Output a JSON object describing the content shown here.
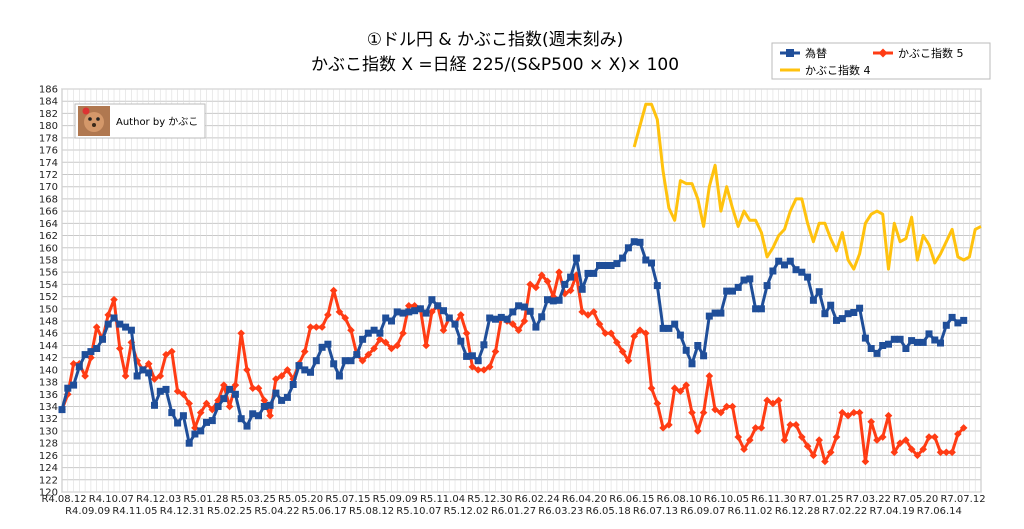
{
  "colors": {
    "fx": "#1f4e99",
    "k5": "#ff3c14",
    "k4": "#ffc20e",
    "grid": "#c8c8c8",
    "plot_bg": "#ffffff"
  },
  "chart_data": {
    "type": "line",
    "title_line1": "①ドル円 & かぶこ指数(週末刻み)",
    "title_line2": "かぶこ指数 X =日経 225/(S&P500 × X)× 100",
    "author_label": "Author by かぶこ",
    "author_icon": "dog-photo-icon",
    "ylim": [
      120,
      186
    ],
    "ytick_step": 2,
    "grid": true,
    "legend_position": "top-right",
    "x_tick_labels_upper": [
      "R4.08.12",
      "R4.10.07",
      "R4.12.03",
      "R5.01.28",
      "R5.03.25",
      "R5.05.20",
      "R5.07.15",
      "R5.09.09",
      "R5.11.04",
      "R5.12.30",
      "R6.02.24",
      "R6.04.20",
      "R6.06.15",
      "R6.08.10",
      "R6.10.05",
      "R6.11.30",
      "R7.01.25",
      "R7.03.22",
      "R7.05.20",
      "R7.07.12"
    ],
    "x_tick_labels_lower": [
      "R4.09.09",
      "R4.11.05",
      "R4.12.31",
      "R5.02.25",
      "R5.04.22",
      "R5.06.17",
      "R5.08.12",
      "R5.10.07",
      "R5.12.02",
      "R6.01.27",
      "R6.03.23",
      "R6.05.18",
      "R6.07.13",
      "R6.09.07",
      "R6.11.02",
      "R6.12.28",
      "R7.02.22",
      "R7.04.19",
      "R7.06.14"
    ],
    "series": [
      {
        "name": "為替",
        "color_key": "fx",
        "marker": "square",
        "start_index": 0,
        "values": [
          133.5,
          137,
          137.5,
          140.5,
          142.5,
          143,
          143.5,
          145,
          147.5,
          148.5,
          147.5,
          147,
          146.5,
          139,
          140,
          139.5,
          134.2,
          136.5,
          136.8,
          133,
          131.3,
          132.5,
          128,
          129.5,
          130,
          131.4,
          131.7,
          134,
          135.3,
          136.8,
          136,
          132,
          130.8,
          132.8,
          132.5,
          134,
          134.2,
          136.2,
          135,
          135.5,
          137.6,
          140.7,
          140,
          139.6,
          141.5,
          143.7,
          144.2,
          141,
          139,
          141.5,
          141.5,
          142.5,
          145,
          146,
          146.5,
          146,
          148.5,
          148,
          149.5,
          149.3,
          149.5,
          149.7,
          150,
          149.3,
          151.5,
          150.5,
          149.7,
          148.5,
          147.5,
          144.7,
          142.2,
          142.3,
          141.5,
          144.1,
          148.5,
          148.3,
          148.6,
          148.3,
          149.5,
          150.5,
          150.3,
          149.6,
          147,
          148.7,
          151.5,
          151.3,
          151.4,
          154,
          155.2,
          158.3,
          153.2,
          155.8,
          155.8,
          157.1,
          157.1,
          157.1,
          157.4,
          158.3,
          160,
          161,
          160.9,
          158,
          157.5,
          153.8,
          146.8,
          146.8,
          147.5,
          145.7,
          143.2,
          141,
          144,
          142.3,
          148.8,
          149.3,
          149.3,
          152.9,
          152.9,
          153.5,
          154.7,
          154.9,
          150,
          150,
          153.8,
          156.2,
          157.8,
          157.2,
          157.8,
          156.4,
          156,
          155.2,
          151.4,
          152.8,
          149.2,
          150.6,
          148.1,
          148.4,
          149.2,
          149.4,
          150.1,
          145.2,
          143.5,
          142.7,
          144,
          144.2,
          145,
          145,
          143.5,
          144.8,
          144.5,
          144.5,
          145.9,
          144.9,
          144.4,
          147.3,
          148.6,
          147.7,
          148.1
        ]
      },
      {
        "name": "かぶこ指数 5",
        "color_key": "k5",
        "marker": "diamond",
        "start_index": 0,
        "values": [
          133.5,
          136,
          141,
          141,
          139,
          142,
          147,
          145,
          149,
          151.5,
          143.5,
          139,
          144.5,
          141.5,
          140,
          141,
          138.5,
          139,
          142.5,
          143,
          136.5,
          136,
          134.5,
          130.5,
          133,
          134.5,
          133.5,
          135,
          137.5,
          134,
          137.5,
          146,
          140,
          137,
          137,
          135,
          132.5,
          138.5,
          139,
          140,
          138.5,
          141,
          143,
          147,
          147,
          147,
          149,
          153,
          149.5,
          148.5,
          146.5,
          142.5,
          141.5,
          142.5,
          143.5,
          145,
          144.5,
          143.5,
          144,
          146,
          150.5,
          150.5,
          150,
          144,
          149.5,
          150.5,
          146.5,
          148.5,
          147.5,
          149,
          146,
          140.5,
          140,
          140,
          140.5,
          143,
          148.5,
          148,
          147.5,
          146.5,
          148,
          154,
          153.5,
          155.5,
          154.5,
          152,
          156,
          152.5,
          153,
          155.5,
          149.5,
          149,
          149.5,
          147.5,
          146,
          146,
          144.5,
          143,
          141.5,
          145.5,
          146.5,
          146,
          137,
          134.5,
          130.5,
          131,
          137,
          136.5,
          137.5,
          133,
          130,
          133,
          139,
          133.5,
          133,
          134,
          134,
          129,
          127,
          128.5,
          130.5,
          130.5,
          135,
          134.5,
          135,
          128.5,
          131,
          131,
          129,
          127.5,
          126,
          128.5,
          125,
          126.5,
          129,
          133,
          132.5,
          133,
          133,
          125,
          131.5,
          128.5,
          129,
          132.5,
          126.5,
          128,
          128.5,
          127,
          126,
          127,
          129,
          129,
          126.5,
          126.5,
          126.5,
          129.5,
          130.5
        ]
      },
      {
        "name": "かぶこ指数 4",
        "color_key": "k4",
        "marker": "none",
        "start_index": 99,
        "values": [
          176.5,
          180,
          183.5,
          183.5,
          181,
          172.5,
          166.5,
          164.5,
          171,
          170.5,
          170.5,
          168,
          163.5,
          170,
          173.5,
          166,
          170,
          166.5,
          163.5,
          166,
          164.5,
          164.5,
          162.5,
          158.5,
          160,
          162,
          163,
          166,
          168,
          168,
          164,
          161,
          164,
          164,
          161.5,
          159.5,
          162.5,
          158,
          156.5,
          159,
          164,
          165.5,
          166,
          165.5,
          156.5,
          164,
          161,
          161.5,
          165,
          158,
          162,
          160.5,
          157.5,
          159,
          161,
          163,
          158.5,
          158,
          158.5,
          163,
          163.5
        ]
      }
    ]
  }
}
